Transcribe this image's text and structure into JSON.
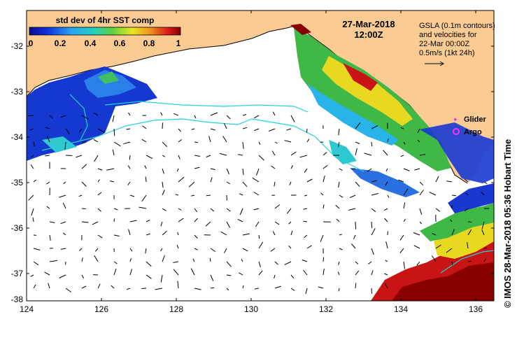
{
  "map": {
    "colorbar": {
      "title": "std dev of 4hr SST comp",
      "ticks": [
        "0",
        "0.2",
        "0.4",
        "0.6",
        "0.8",
        "1"
      ]
    },
    "date": "27-Mar-2018",
    "time": "12:00Z",
    "legend": {
      "lines": [
        "GSLA (0.1m contours)",
        "and velocities for",
        "22-Mar 00:00Z",
        "0.5m/s (1kt 24h)"
      ],
      "glider": "Glider",
      "argo": "Argo"
    },
    "x_ticks": [
      "124",
      "126",
      "128",
      "130",
      "132",
      "134",
      "136"
    ],
    "y_ticks": [
      "-32",
      "-33",
      "-34",
      "-35",
      "-36",
      "-37",
      "-38"
    ],
    "credit": "©  IMOS 28-Mar-2018 05:36 Hobart Time",
    "colors": {
      "land": "#fbcb94",
      "ocean": "#ffffff",
      "contour": "#22d3d8",
      "glider": "#cc33cc",
      "argo": "#ff33ff"
    }
  }
}
